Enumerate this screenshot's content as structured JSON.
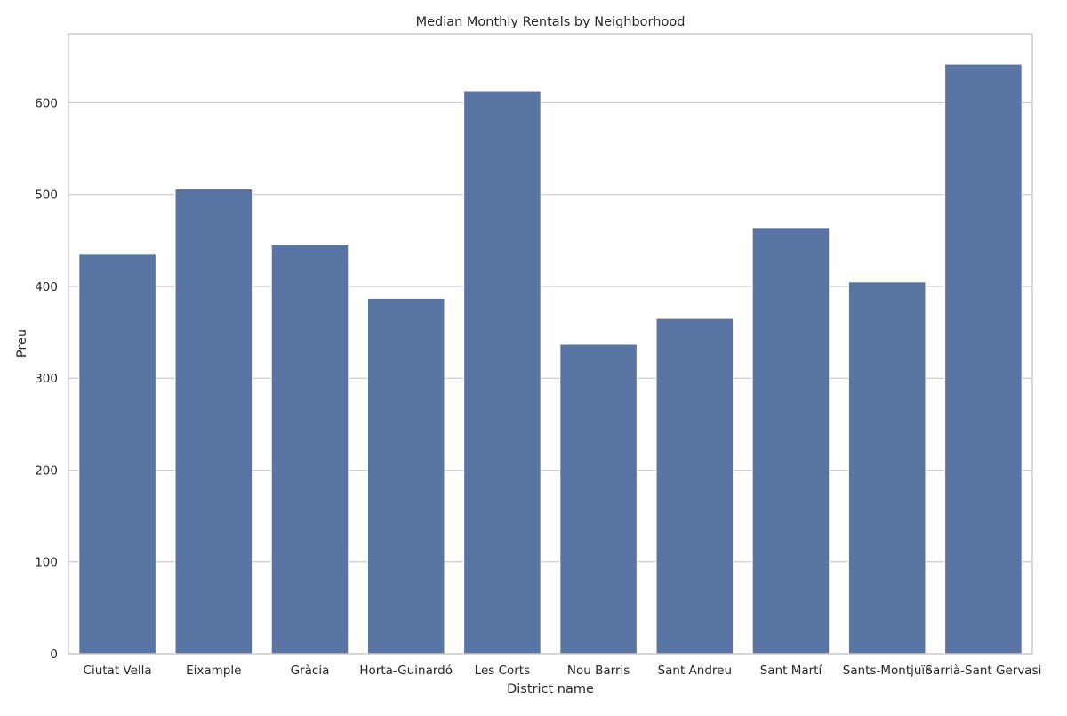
{
  "chart_data": {
    "type": "bar",
    "title": "Median Monthly Rentals by Neighborhood",
    "xlabel": "District name",
    "ylabel": "Preu",
    "categories": [
      "Ciutat Vella",
      "Eixample",
      "Gràcia",
      "Horta-Guinardó",
      "Les Corts",
      "Nou Barris",
      "Sant Andreu",
      "Sant Martí",
      "Sants-Montjuïc",
      "Sarrià-Sant Gervasi"
    ],
    "values": [
      435,
      506,
      445,
      387,
      613,
      337,
      365,
      464,
      405,
      642
    ],
    "ylim": [
      0,
      675
    ],
    "yticks": [
      "0",
      "100",
      "200",
      "300",
      "400",
      "500",
      "600"
    ],
    "grid": "horizontal",
    "bar_color": "#5975a4",
    "grid_color": "#cccccc"
  }
}
